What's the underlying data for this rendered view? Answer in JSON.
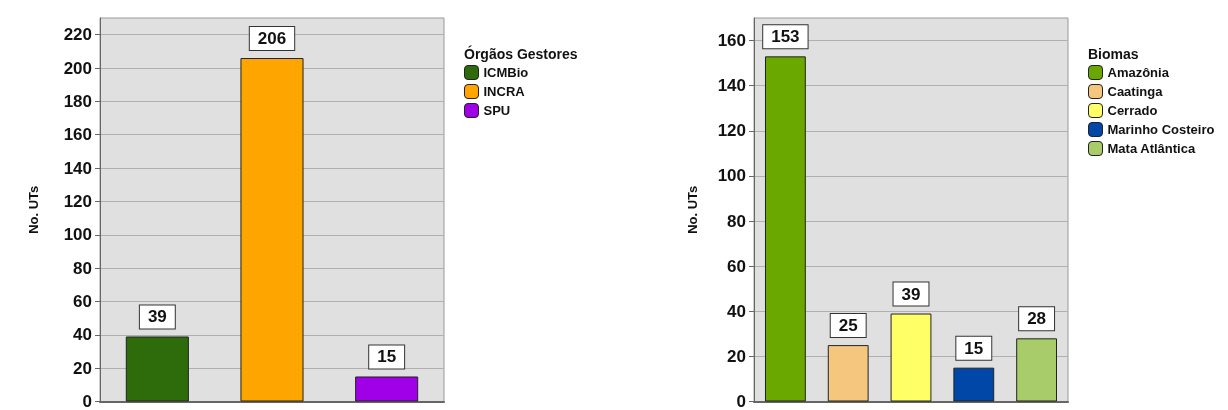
{
  "chart_data": [
    {
      "type": "bar",
      "ylabel": "No. UTs",
      "legend_title": "Órgãos Gestores",
      "categories": [
        null,
        null,
        null
      ],
      "series": [
        {
          "name": "ICMBio",
          "color": "#2e6b0a",
          "values": [
            39,
            null,
            null
          ]
        },
        {
          "name": "INCRA",
          "color": "#ffa500",
          "values": [
            null,
            206,
            null
          ]
        },
        {
          "name": "SPU",
          "color": "#a000e8",
          "values": [
            null,
            null,
            15
          ]
        }
      ],
      "ylim": [
        0,
        230
      ],
      "yticks": [
        0,
        20,
        40,
        60,
        80,
        100,
        120,
        140,
        160,
        180,
        200,
        220
      ],
      "grid": "y",
      "legend": "right",
      "data_labels": true
    },
    {
      "type": "bar",
      "ylabel": "No. UTs",
      "legend_title": "Biomas",
      "categories": [
        null,
        null,
        null,
        null,
        null
      ],
      "series": [
        {
          "name": "Amazônia",
          "color": "#6aa800",
          "values": [
            153,
            null,
            null,
            null,
            null
          ]
        },
        {
          "name": "Caatinga",
          "color": "#f5c77e",
          "values": [
            null,
            25,
            null,
            null,
            null
          ]
        },
        {
          "name": "Cerrado",
          "color": "#ffff66",
          "values": [
            null,
            null,
            39,
            null,
            null
          ]
        },
        {
          "name": "Marinho Costeiro",
          "color": "#0047a8",
          "values": [
            null,
            null,
            null,
            15,
            null
          ]
        },
        {
          "name": "Mata Atlântica",
          "color": "#a8cc6a",
          "values": [
            null,
            null,
            null,
            null,
            28
          ]
        }
      ],
      "ylim": [
        0,
        170
      ],
      "yticks": [
        0,
        20,
        40,
        60,
        80,
        100,
        120,
        140,
        160
      ],
      "grid": "y",
      "legend": "right",
      "data_labels": true
    }
  ]
}
